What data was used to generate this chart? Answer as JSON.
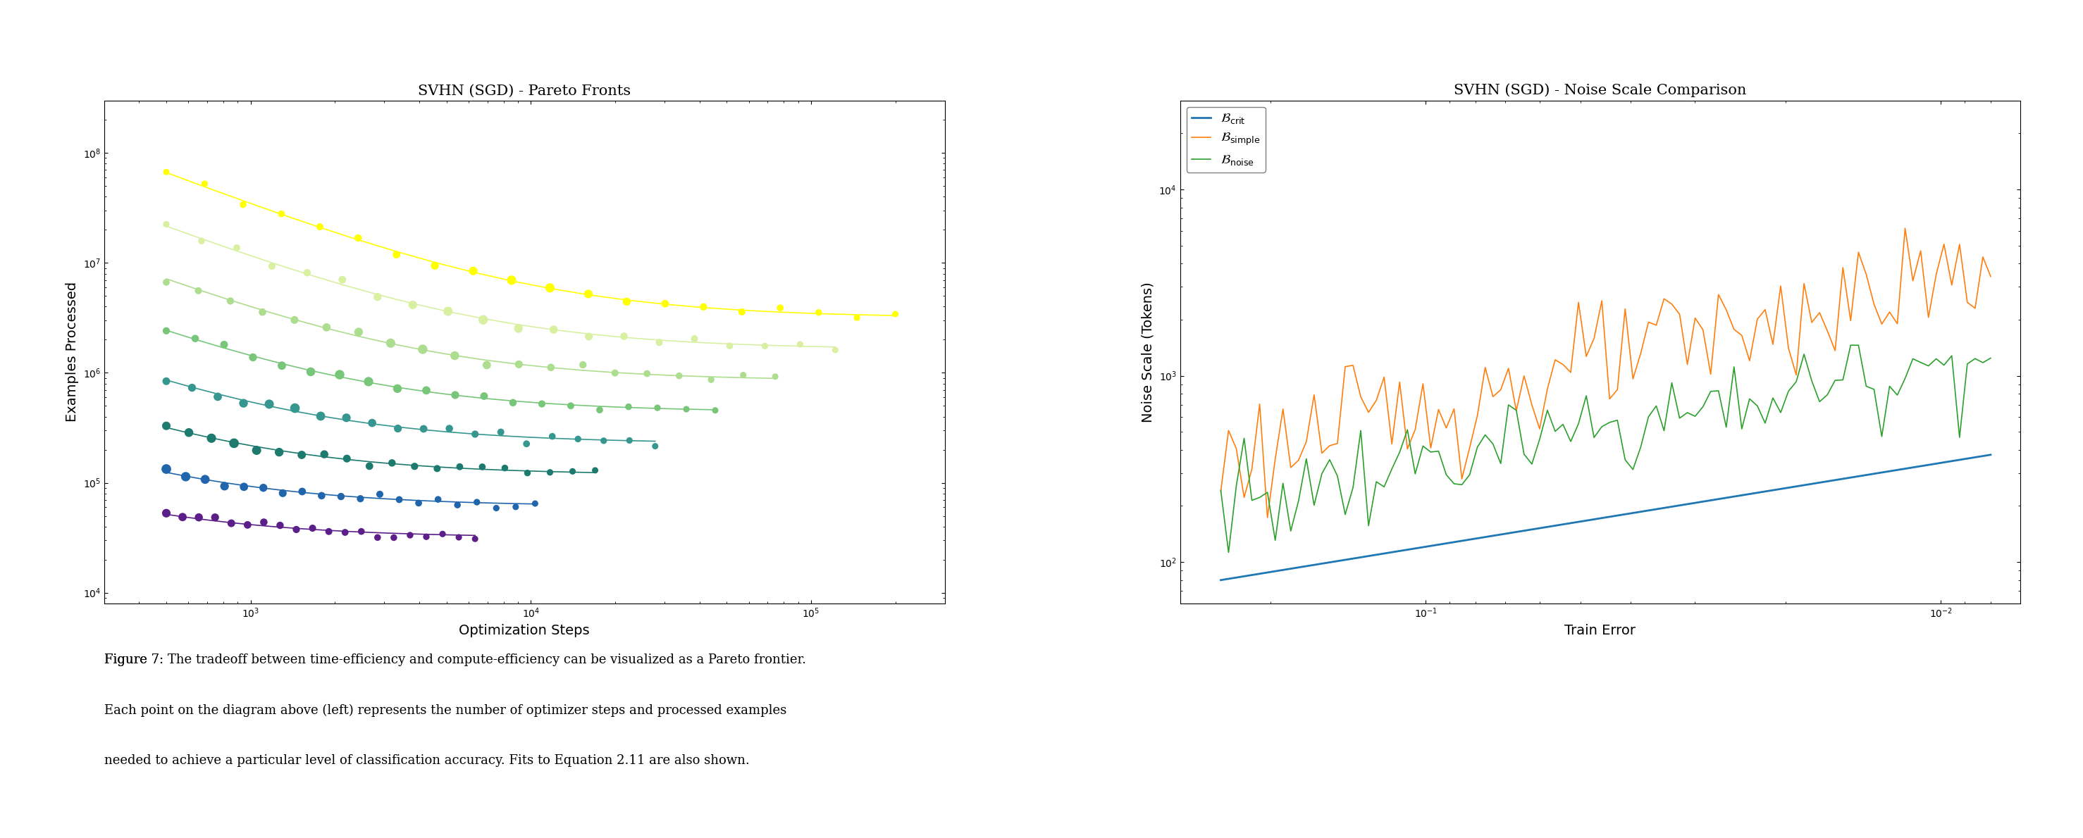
{
  "left_title": "SVHN (SGD) - Pareto Fronts",
  "right_title": "SVHN (SGD) - Noise Scale Comparison",
  "left_xlabel": "Optimization Steps",
  "left_ylabel": "Examples Processed",
  "right_xlabel": "Train Error",
  "right_ylabel": "Noise Scale (Tokens)",
  "left_xlim": [
    300,
    300000
  ],
  "left_ylim": [
    8000,
    300000000.0
  ],
  "right_xlim": [
    0.3,
    0.007
  ],
  "right_ylim": [
    60,
    30000
  ],
  "etrain_values": [
    0.2,
    0.1,
    0.07,
    0.05,
    0.035,
    0.025,
    0.015,
    0.004
  ],
  "colors_pareto": [
    "#7b2d8b",
    "#2171b5",
    "#238b45",
    "#41ae76",
    "#78c679",
    "#addd8e",
    "#d9f0a3",
    "#ffff00"
  ],
  "caption_line1": "Figure 7: The tradeoff between time-efficiency and compute-efficiency can be visualized as a Pareto frontier.",
  "caption_line2": "Each point on the diagram above (left) represents the number of optimizer steps and processed examples",
  "caption_line3": "needed to achieve a particular level of classification accuracy. Fits to Equation 2.11 are also shown.",
  "caption_underline": "The tradeoff between time-efficiency and compute-efficiency can be visualized as a Pareto frontier."
}
